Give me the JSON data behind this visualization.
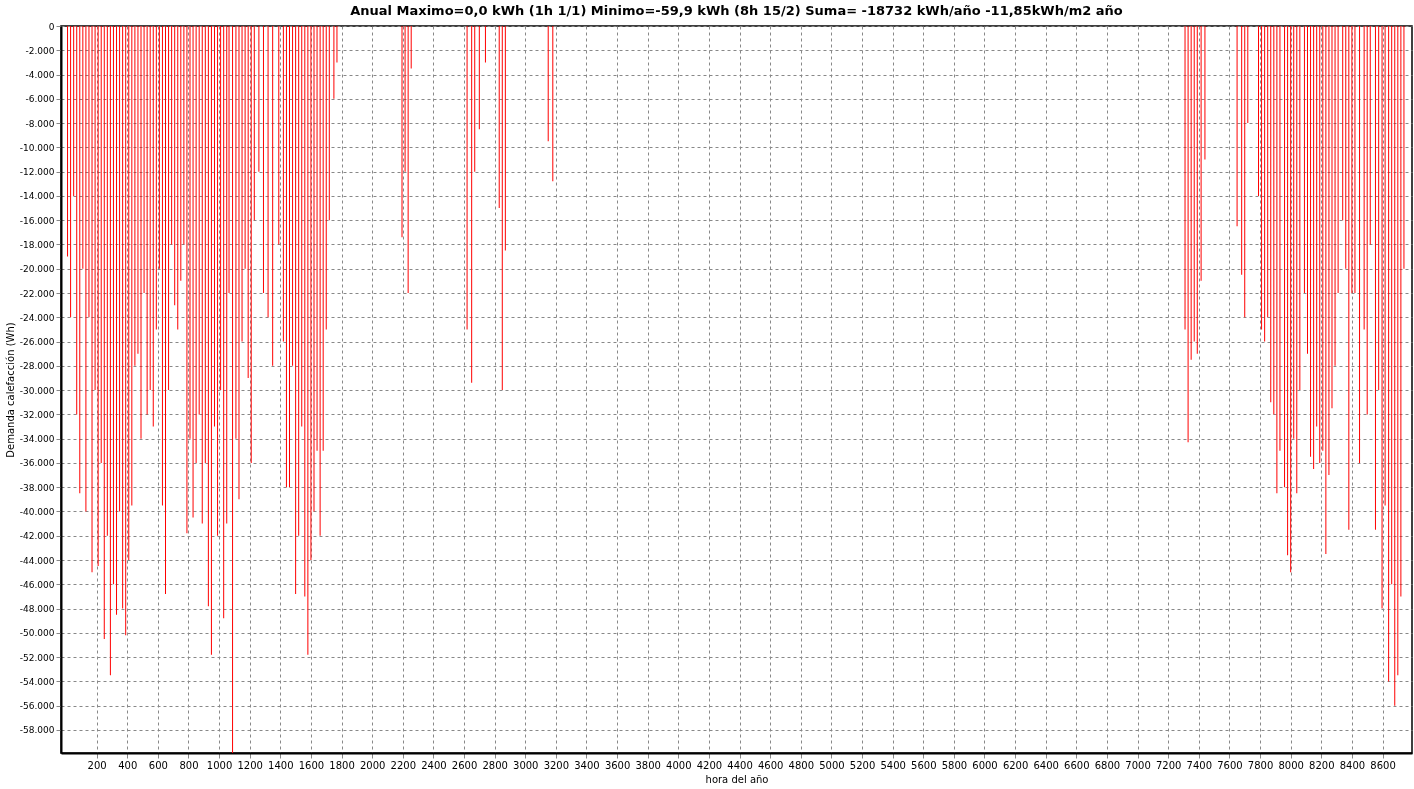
{
  "chart_data": {
    "type": "bar",
    "title": "Anual        Maximo=0,0 kWh  (1h   1/1)   Minimo=-59,9 kWh  (8h   15/2)  Suma= -18732 kWh/año      -11,85kWh/m2 año",
    "xlabel": "hora del año",
    "ylabel": "Demanda calefacción (Wh)",
    "x": [
      10,
      30,
      50,
      70,
      90,
      110,
      130,
      150,
      170,
      190,
      210,
      230,
      250,
      270,
      290,
      310,
      330,
      350,
      370,
      390,
      410,
      430,
      450,
      470,
      490,
      510,
      530,
      550,
      570,
      590,
      610,
      630,
      650,
      670,
      690,
      710,
      730,
      750,
      770,
      790,
      810,
      830,
      850,
      870,
      890,
      910,
      930,
      950,
      970,
      990,
      1010,
      1030,
      1050,
      1065,
      1088,
      1110,
      1130,
      1150,
      1170,
      1190,
      1210,
      1230,
      1260,
      1290,
      1320,
      1350,
      1390,
      1420,
      1440,
      1460,
      1480,
      1500,
      1520,
      1540,
      1560,
      1580,
      1600,
      1620,
      1640,
      1660,
      1680,
      1700,
      1720,
      1750,
      1770,
      2195,
      2215,
      2235,
      2255,
      2620,
      2650,
      2670,
      2700,
      2740,
      2830,
      2850,
      2870,
      3150,
      3180,
      7310,
      7330,
      7350,
      7370,
      7390,
      7415,
      7440,
      7650,
      7680,
      7700,
      7720,
      7790,
      7810,
      7830,
      7850,
      7870,
      7890,
      7910,
      7930,
      7960,
      7980,
      8000,
      8020,
      8040,
      8060,
      8090,
      8110,
      8130,
      8150,
      8170,
      8190,
      8210,
      8230,
      8250,
      8270,
      8290,
      8310,
      8340,
      8360,
      8380,
      8400,
      8420,
      8450,
      8480,
      8500,
      8520,
      8554,
      8575,
      8597,
      8617,
      8640,
      8660,
      8680,
      8700,
      8720,
      8740
    ],
    "series": [
      {
        "color": "#ff0000",
        "values": [
          -19000,
          -24000,
          -14000,
          -32000,
          -38500,
          -20000,
          -40000,
          -24000,
          -45000,
          -30000,
          -44500,
          -36000,
          -50500,
          -42000,
          -53500,
          -46000,
          -48500,
          -40000,
          -48000,
          -50200,
          -44000,
          -39500,
          -28000,
          -27000,
          -34000,
          -22000,
          -32000,
          -30000,
          -33000,
          -25000,
          -20000,
          -39500,
          -46800,
          -30000,
          -18000,
          -23000,
          -25000,
          -21000,
          -18000,
          -41800,
          -34000,
          -40500,
          -36000,
          -32000,
          -41000,
          -36000,
          -47800,
          -51800,
          -33000,
          -42000,
          -30000,
          -48800,
          -41000,
          -22000,
          -59900,
          -34000,
          -39000,
          -26000,
          -20000,
          -29000,
          -36000,
          -16000,
          -12000,
          -22000,
          -24000,
          -28000,
          -18000,
          -26000,
          -38000,
          -38000,
          -28000,
          -46800,
          -42000,
          -33000,
          -47000,
          -51800,
          -44000,
          -40000,
          -35000,
          -42000,
          -35000,
          -25000,
          -16000,
          -6000,
          -3000,
          -17400,
          -12000,
          -22000,
          -3500,
          -25000,
          -29400,
          -12000,
          -8500,
          -3000,
          -15000,
          -30000,
          -18500,
          -9500,
          -12800,
          -25000,
          -34300,
          -27500,
          -26000,
          -27000,
          -21000,
          -11000,
          -16500,
          -20500,
          -24000,
          -8000,
          -14000,
          -25000,
          -26000,
          -24000,
          -31000,
          -32000,
          -38500,
          -35000,
          -38000,
          -43600,
          -45000,
          -34000,
          -38500,
          -30000,
          -22000,
          -27000,
          -35500,
          -36500,
          -33000,
          -36000,
          -35000,
          -43500,
          -37000,
          -31500,
          -28000,
          -22000,
          -16000,
          -20000,
          -41500,
          -22000,
          -22000,
          -36000,
          -25000,
          -32000,
          -18000,
          -41500,
          -30000,
          -48000,
          -39500,
          -54000,
          -46000,
          -56000,
          -53500,
          -47000,
          -20000
        ]
      }
    ],
    "xlim": [
      0,
      8760
    ],
    "xticks": [
      200,
      400,
      600,
      800,
      1000,
      1200,
      1400,
      1600,
      1800,
      2000,
      2200,
      2400,
      2600,
      2800,
      3000,
      3200,
      3400,
      3600,
      3800,
      4000,
      4200,
      4400,
      4600,
      4800,
      5000,
      5200,
      5400,
      5600,
      5800,
      6000,
      6200,
      6400,
      6600,
      6800,
      7000,
      7200,
      7400,
      7600,
      7800,
      8000,
      8200,
      8400,
      8600
    ],
    "ylim": [
      -59900,
      0
    ],
    "yticks": [
      0,
      {
        "value": -2000,
        "label": "-2.000"
      },
      {
        "value": -4000,
        "label": "-4.000"
      },
      {
        "value": -6000,
        "label": "-6.000"
      },
      {
        "value": -8000,
        "label": "-8.000"
      },
      {
        "value": -10000,
        "label": "-10.000"
      },
      {
        "value": -12000,
        "label": "-12.000"
      },
      {
        "value": -14000,
        "label": "-14.000"
      },
      {
        "value": -16000,
        "label": "-16.000"
      },
      {
        "value": -18000,
        "label": "-18.000"
      },
      {
        "value": -20000,
        "label": "-20.000"
      },
      {
        "value": -22000,
        "label": "-22.000"
      },
      {
        "value": -24000,
        "label": "-24.000"
      },
      {
        "value": -26000,
        "label": "-26.000"
      },
      {
        "value": -28000,
        "label": "-28.000"
      },
      {
        "value": -30000,
        "label": "-30.000"
      },
      {
        "value": -32000,
        "label": "-32.000"
      },
      {
        "value": -34000,
        "label": "-34.000"
      },
      {
        "value": -36000,
        "label": "-36.000"
      },
      {
        "value": -38000,
        "label": "-38.000"
      },
      {
        "value": -40000,
        "label": "-40.000"
      },
      {
        "value": -42000,
        "label": "-42.000"
      },
      {
        "value": -44000,
        "label": "-44.000"
      },
      {
        "value": -46000,
        "label": "-46.000"
      },
      {
        "value": -48000,
        "label": "-48.000"
      },
      {
        "value": -50000,
        "label": "-50.000"
      },
      {
        "value": -52000,
        "label": "-52.000"
      },
      {
        "value": -54000,
        "label": "-54.000"
      },
      {
        "value": -56000,
        "label": "-56.000"
      },
      {
        "value": -58000,
        "label": "-58.000"
      }
    ],
    "grid": true
  }
}
